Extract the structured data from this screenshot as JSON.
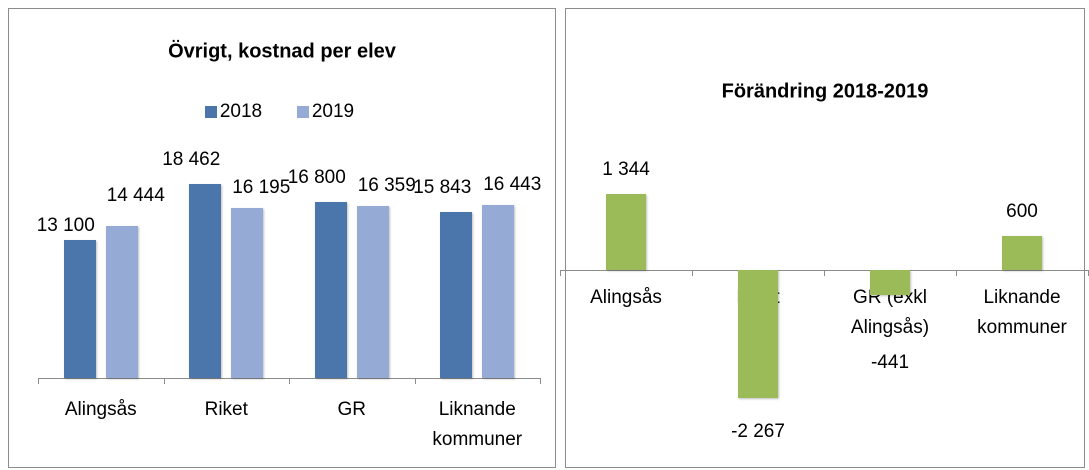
{
  "chart_data": [
    {
      "type": "bar",
      "title": "Övrigt, kostnad per elev",
      "categories": [
        "Alingsås",
        "Riket",
        "GR",
        "Liknande kommuner"
      ],
      "series": [
        {
          "name": "2018",
          "color": "#4a76ac",
          "values": [
            13100,
            18462,
            16800,
            15843
          ],
          "value_labels": [
            "13 100",
            "18 462",
            "16 800",
            "15 843"
          ]
        },
        {
          "name": "2019",
          "color": "#95abd6",
          "values": [
            14444,
            16195,
            16359,
            16443
          ],
          "value_labels": [
            "14 444",
            "16 195",
            "16 359",
            "16 443"
          ]
        }
      ],
      "ylim": [
        0,
        20000
      ],
      "legend": "top"
    },
    {
      "type": "bar",
      "title": "Förändring 2018-2019",
      "categories": [
        "Alingsås",
        "Riket",
        "GR (exkl Alingsås)",
        "Liknande kommuner"
      ],
      "values": [
        1344,
        -2267,
        -441,
        600
      ],
      "value_labels": [
        "1 344",
        "-2 267",
        "-441",
        "600"
      ],
      "color": "#9bbb59",
      "ylim": [
        -2500,
        1500
      ]
    }
  ]
}
